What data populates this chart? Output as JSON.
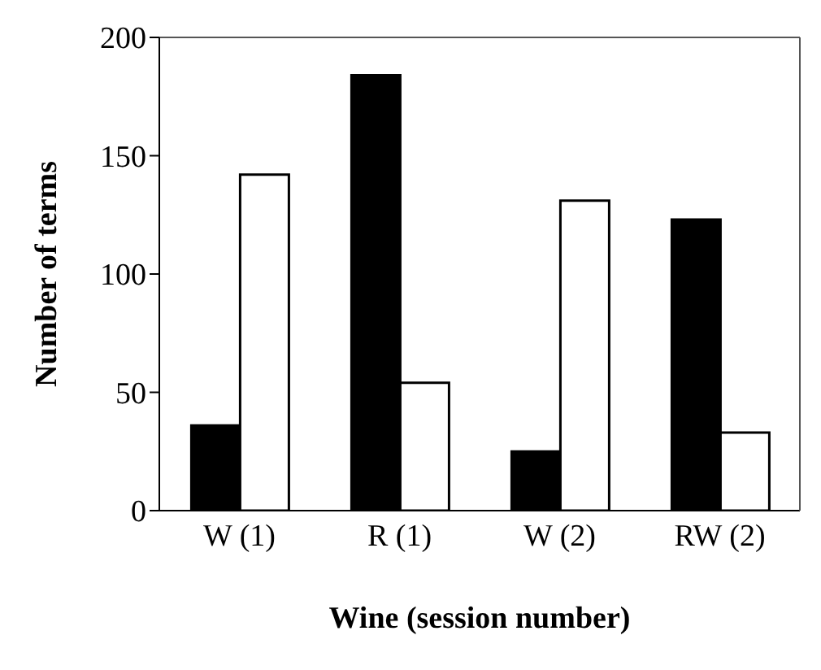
{
  "chart_data": {
    "type": "bar",
    "xlabel": "Wine (session number)",
    "ylabel": "Number of terms",
    "categories": [
      "W (1)",
      "R (1)",
      "W (2)",
      "RW (2)"
    ],
    "series": [
      {
        "color": "#000000",
        "values": [
          36,
          184,
          25,
          123
        ]
      },
      {
        "color": "#ffffff",
        "values": [
          142,
          54,
          131,
          33
        ]
      }
    ],
    "ylim": [
      0,
      200
    ],
    "yticks": [
      0,
      50,
      100,
      150,
      200
    ],
    "grid": false,
    "legend": false
  }
}
